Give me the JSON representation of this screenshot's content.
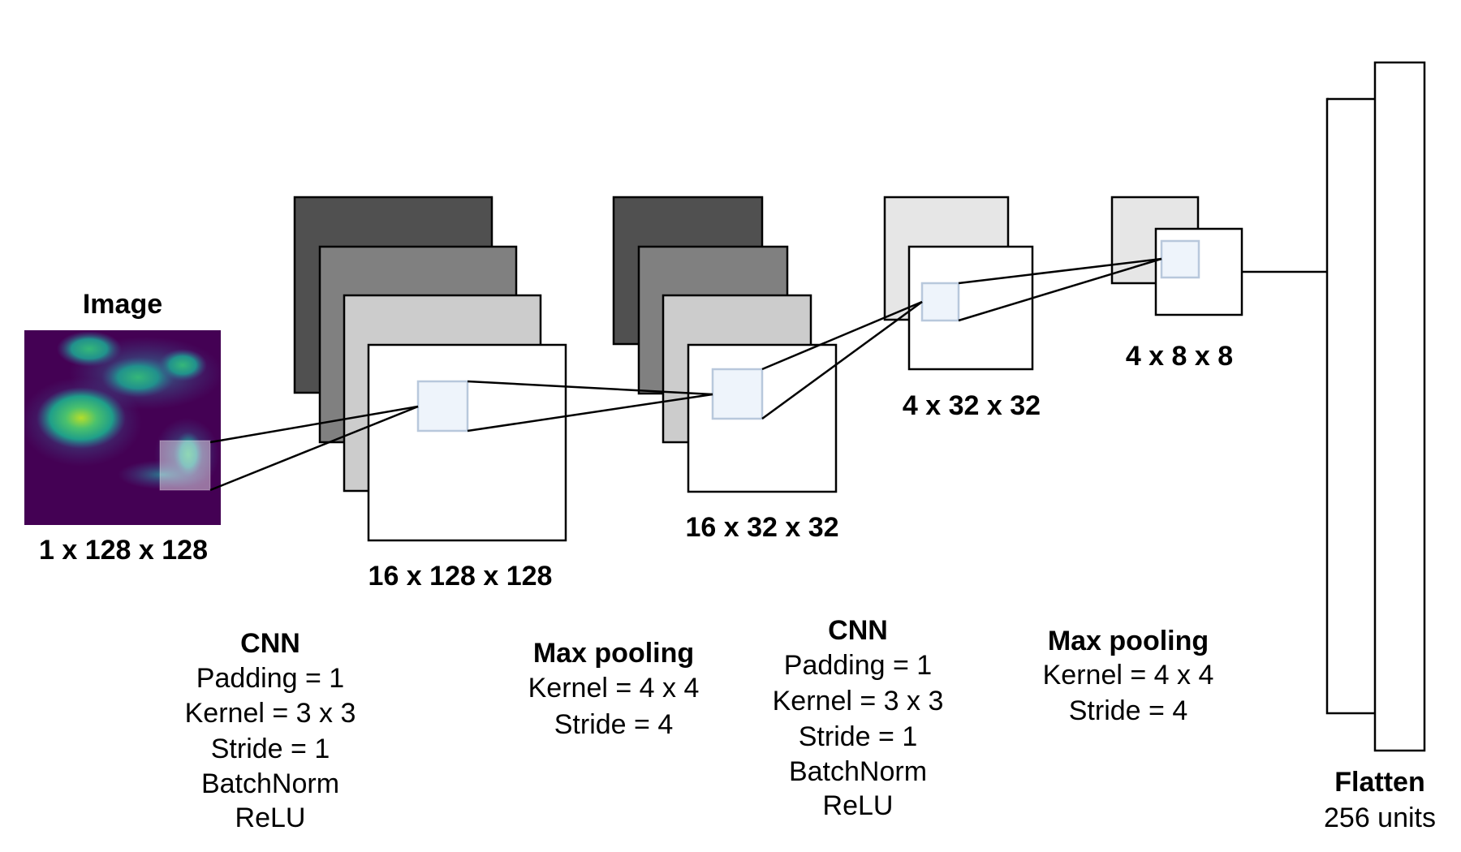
{
  "image": {
    "title": "Image",
    "dims": "1 x 128 x 128"
  },
  "stage1": {
    "dims": "16 x 128 x 128",
    "op_title": "CNN",
    "op_lines": [
      "Padding = 1",
      "Kernel = 3 x 3",
      "Stride = 1",
      "BatchNorm",
      "ReLU"
    ]
  },
  "stage2": {
    "dims": "16 x 32 x 32",
    "op_title": "Max pooling",
    "op_lines": [
      "Kernel = 4 x 4",
      "Stride = 4"
    ]
  },
  "stage3": {
    "dims": "4 x 32 x 32",
    "op_title": "CNN",
    "op_lines": [
      "Padding = 1",
      "Kernel = 3 x 3",
      "Stride = 1",
      "BatchNorm",
      "ReLU"
    ]
  },
  "stage4": {
    "dims": "4 x 8 x 8",
    "op_title": "Max pooling",
    "op_lines": [
      "Kernel = 4 x 4",
      "Stride = 4"
    ]
  },
  "flatten": {
    "title": "Flatten",
    "units": "256 units"
  },
  "colors": {
    "layer_dark": "#505050",
    "layer_mid": "#808080",
    "layer_light": "#cccccc",
    "layer_pale": "#e6e6e6",
    "kernel_fill": "#eef4fb",
    "kernel_stroke": "#b8c8dc",
    "image_bg": "#440154"
  }
}
